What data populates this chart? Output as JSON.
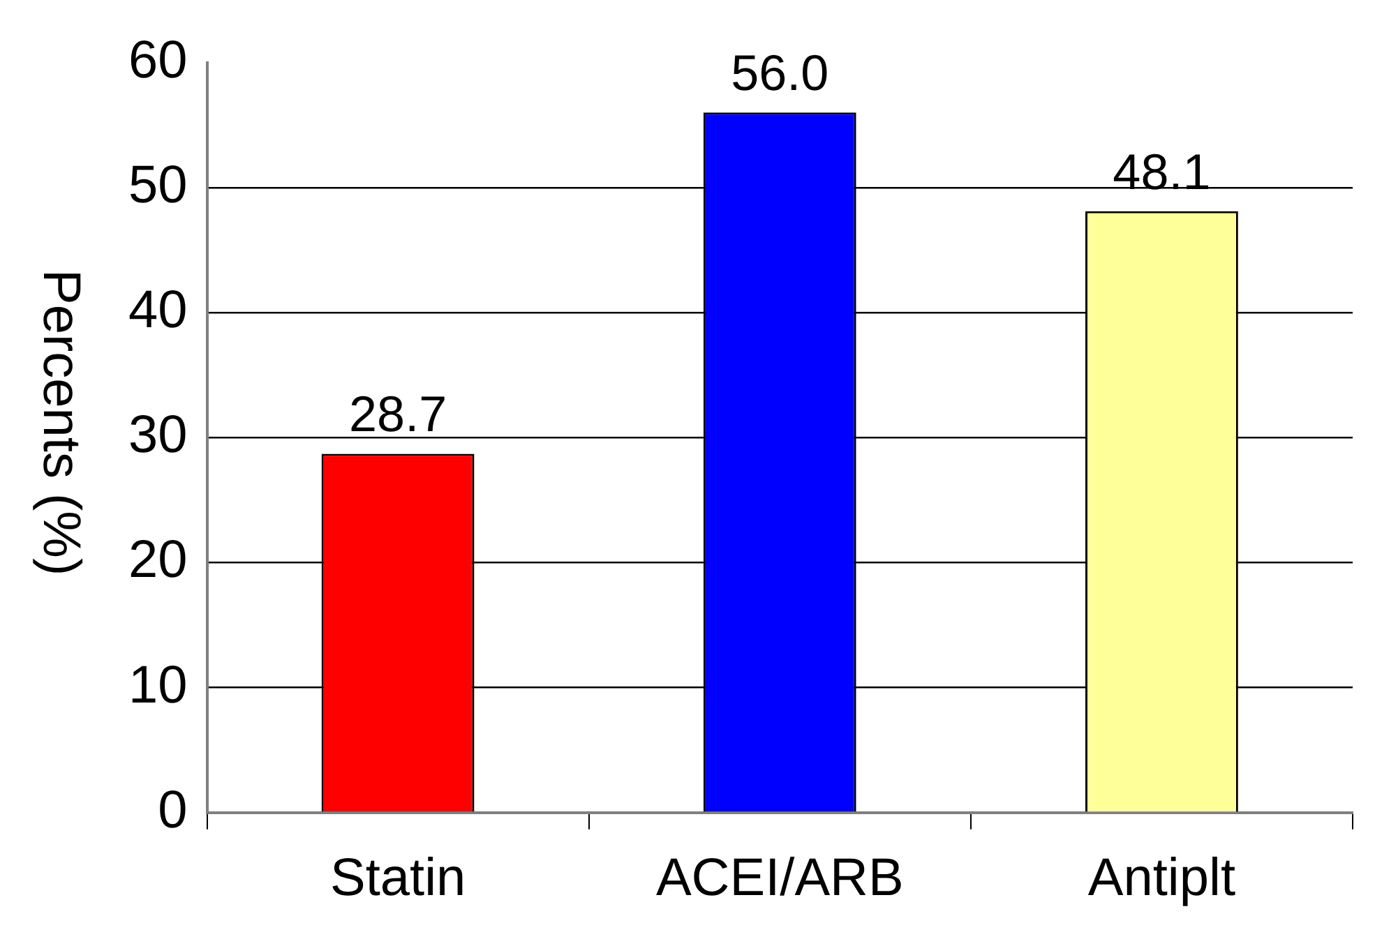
{
  "chart_data": {
    "type": "bar",
    "ylabel": "Percents (%)",
    "categories": [
      "Statin",
      "ACEI/ARB",
      "Antiplt"
    ],
    "values": [
      28.7,
      56.0,
      48.1
    ],
    "value_labels": [
      "28.7",
      "56.0",
      "48.1"
    ],
    "colors": [
      "#ff0000",
      "#0000ff",
      "#ffff99"
    ],
    "ylim": [
      0,
      60
    ],
    "yticks": [
      0,
      10,
      20,
      30,
      40,
      50,
      60
    ],
    "grid": "y"
  }
}
